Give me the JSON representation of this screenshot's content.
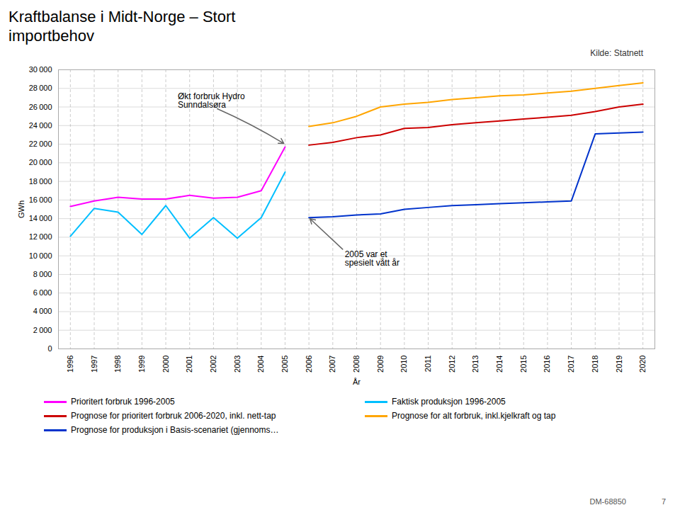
{
  "chart_data": {
    "type": "line",
    "title": "Kraftbalanse i Midt-Norge – Stort\nimportbehov",
    "source": "Kilde: Statnett",
    "footer": [
      "DM-68850",
      "7"
    ],
    "x_label": "År",
    "y_label": "GWh",
    "xlim": [
      1995.5,
      2020.5
    ],
    "xticks": [
      1996,
      1997,
      1998,
      1999,
      2000,
      2001,
      2002,
      2003,
      2004,
      2005,
      2006,
      2007,
      2008,
      2009,
      2010,
      2011,
      2012,
      2013,
      2014,
      2015,
      2016,
      2017,
      2018,
      2019,
      2020
    ],
    "ylim": [
      0,
      30000
    ],
    "yticks": [
      0,
      {
        "value": 2000,
        "label": "2 000"
      },
      {
        "value": 4000,
        "label": "4 000"
      },
      {
        "value": 6000,
        "label": "6 000"
      },
      {
        "value": 8000,
        "label": "8 000"
      },
      {
        "value": 10000,
        "label": "10 000"
      },
      {
        "value": 12000,
        "label": "12 000"
      },
      {
        "value": 14000,
        "label": "14 000"
      },
      {
        "value": 16000,
        "label": "16 000"
      },
      {
        "value": 18000,
        "label": "18 000"
      },
      {
        "value": 20000,
        "label": "20 000"
      },
      {
        "value": 22000,
        "label": "22 000"
      },
      {
        "value": 24000,
        "label": "24 000"
      },
      {
        "value": 26000,
        "label": "26 000"
      },
      {
        "value": 28000,
        "label": "28 000"
      },
      {
        "value": 30000,
        "label": "30 000"
      }
    ],
    "grid": true,
    "legend": "bottom",
    "series": [
      {
        "name": "Prioritert forbruk 1996-2005",
        "color": "#FF00FF",
        "x": [
          1996,
          1997,
          1998,
          1999,
          2000,
          2001,
          2002,
          2003,
          2004,
          2005
        ],
        "values": [
          15300,
          15900,
          16300,
          16100,
          16100,
          16500,
          16200,
          16300,
          17000,
          21700
        ]
      },
      {
        "name": "Faktisk produksjon 1996-2005",
        "color": "#00BFFF",
        "x": [
          1996,
          1997,
          1998,
          1999,
          2000,
          2001,
          2002,
          2003,
          2004,
          2005
        ],
        "values": [
          12100,
          15100,
          14700,
          12300,
          15400,
          11900,
          14100,
          11900,
          14100,
          19000
        ]
      },
      {
        "name": "Prognose for prioritert forbruk 2006-2020, inkl. nett-tap",
        "color": "#CC0000",
        "x": [
          2006,
          2007,
          2008,
          2009,
          2010,
          2011,
          2012,
          2013,
          2014,
          2015,
          2016,
          2017,
          2018,
          2019,
          2020
        ],
        "values": [
          21900,
          22200,
          22700,
          23000,
          23700,
          23800,
          24100,
          24300,
          24500,
          24700,
          24900,
          25100,
          25500,
          26000,
          26300
        ]
      },
      {
        "name": "Prognose for alt forbruk, inkl.kjelkraft og tap",
        "color": "#FFA500",
        "x": [
          2006,
          2007,
          2008,
          2009,
          2010,
          2011,
          2012,
          2013,
          2014,
          2015,
          2016,
          2017,
          2018,
          2019,
          2020
        ],
        "values": [
          23900,
          24300,
          25000,
          26000,
          26300,
          26500,
          26800,
          27000,
          27200,
          27300,
          27500,
          27700,
          28000,
          28300,
          28600
        ]
      },
      {
        "name": "Prognose for produksjon i Basis-scenariet (gjennoms…",
        "color": "#0033CC",
        "x": [
          2006,
          2007,
          2008,
          2009,
          2010,
          2011,
          2012,
          2013,
          2014,
          2015,
          2016,
          2017,
          2018,
          2019,
          2020
        ],
        "values": [
          14100,
          14200,
          14400,
          14500,
          15000,
          15200,
          15400,
          15500,
          15600,
          15700,
          15800,
          15900,
          23100,
          23200,
          23300
        ]
      }
    ],
    "annotations": [
      {
        "text": "Økt forbruk Hydro\nSunndalsøra",
        "x": 2005,
        "y": 22000,
        "text_x": 2000.5,
        "text_y": 27500
      },
      {
        "text": "2005 var et\nspesielt vått år",
        "x": 2006,
        "y": 14100,
        "text_x": 2007.5,
        "text_y": 10500
      }
    ]
  }
}
